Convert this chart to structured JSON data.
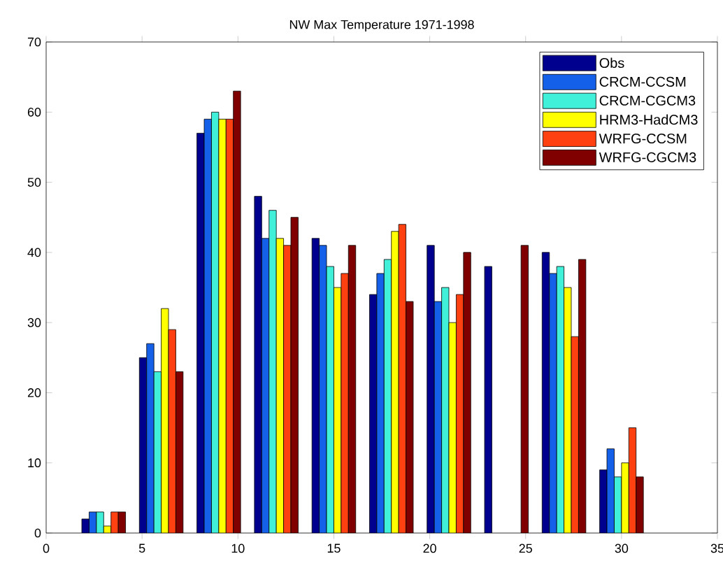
{
  "chart_data": {
    "type": "bar",
    "title": "NW Max Temperature 1971-1998",
    "x": [
      3,
      6,
      9,
      12,
      15,
      18,
      21,
      24,
      27,
      30
    ],
    "series": [
      {
        "name": "Obs",
        "color": "#00008f",
        "values": [
          2,
          25,
          57,
          48,
          42,
          34,
          41,
          38,
          40,
          9
        ]
      },
      {
        "name": "CRCM-CCSM",
        "color": "#1560e8",
        "values": [
          3,
          27,
          59,
          42,
          41,
          37,
          33,
          null,
          37,
          12
        ]
      },
      {
        "name": "CRCM-CGCM3",
        "color": "#40f0d8",
        "values": [
          3,
          23,
          60,
          46,
          38,
          39,
          35,
          null,
          38,
          8
        ]
      },
      {
        "name": "HRM3-HadCM3",
        "color": "#ffff00",
        "values": [
          1,
          32,
          59,
          42,
          35,
          43,
          30,
          null,
          35,
          10
        ]
      },
      {
        "name": "WRFG-CCSM",
        "color": "#ff4010",
        "values": [
          3,
          29,
          59,
          41,
          37,
          44,
          34,
          null,
          28,
          15
        ]
      },
      {
        "name": "WRFG-CGCM3",
        "color": "#800000",
        "values": [
          3,
          23,
          63,
          45,
          41,
          33,
          40,
          41,
          39,
          8
        ]
      }
    ],
    "xlim": [
      0,
      35
    ],
    "xticks": [
      0,
      5,
      10,
      15,
      20,
      25,
      30,
      35
    ],
    "ylim": [
      0,
      70
    ],
    "yticks": [
      0,
      10,
      20,
      30,
      40,
      50,
      60,
      70
    ],
    "legend": "top right"
  }
}
